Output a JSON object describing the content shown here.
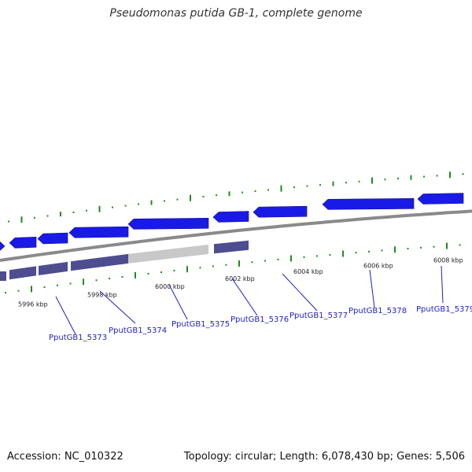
{
  "title": "Pseudomonas putida GB-1, complete genome",
  "footer": {
    "accession": "Accession: NC_010322",
    "summary": "Topology: circular; Length: 6,078,430 bp; Genes: 5,506"
  },
  "colors": {
    "forward_cds": "#1a1ae6",
    "reverse_cds": "#1a1ae6",
    "feature_band": "#4d4d8f",
    "feature_band_gap": "#c8c8c8",
    "backbone": "#8a8a8a",
    "gc_tick": "#1f8c1f",
    "gene_label": "#1f1fbf"
  },
  "scale_ticks": [
    {
      "label": "5996 kbp"
    },
    {
      "label": "5998 kbp"
    },
    {
      "label": "6000 kbp"
    },
    {
      "label": "6002 kbp"
    },
    {
      "label": "6004 kbp"
    },
    {
      "label": "6006 kbp"
    },
    {
      "label": "6008 kbp"
    }
  ],
  "genes": [
    {
      "label": "PputGB1_5373"
    },
    {
      "label": "PputGB1_5374"
    },
    {
      "label": "PputGB1_5375"
    },
    {
      "label": "PputGB1_5376"
    },
    {
      "label": "PputGB1_5377"
    },
    {
      "label": "PputGB1_5378"
    },
    {
      "label": "PputGB1_5379"
    }
  ]
}
